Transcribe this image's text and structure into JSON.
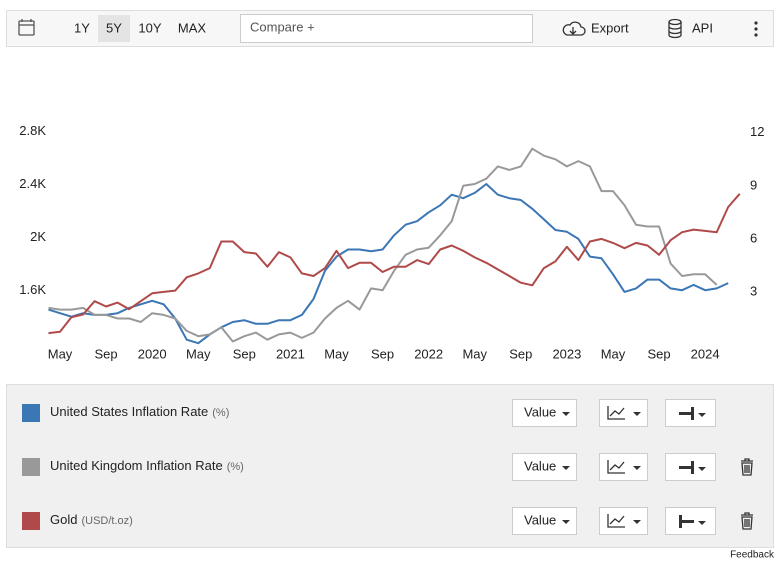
{
  "toolbar": {
    "ranges": [
      "1Y",
      "5Y",
      "10Y",
      "MAX"
    ],
    "compare": "Compare +",
    "export": "Export",
    "api": "API"
  },
  "chart_data": {
    "type": "line",
    "categories": [
      null,
      "May",
      null,
      null,
      null,
      "Sep",
      null,
      null,
      null,
      "2020",
      null,
      null,
      null,
      "May",
      null,
      null,
      null,
      "Sep",
      null,
      null,
      null,
      "2021",
      null,
      null,
      null,
      "May",
      null,
      null,
      null,
      "Sep",
      null,
      null,
      null,
      "2022",
      null,
      null,
      null,
      "May",
      null,
      null,
      null,
      "Sep",
      null,
      null,
      null,
      "2023",
      null,
      null,
      null,
      "May",
      null,
      null,
      null,
      "Sep",
      null,
      null,
      null,
      "2024",
      null,
      null,
      null
    ],
    "ylim": [
      1190,
      3150
    ],
    "yticks": [
      {
        "value": 1600,
        "label": "1.6K"
      },
      {
        "value": 2000,
        "label": "2K"
      },
      {
        "value": 2400,
        "label": "2.4K"
      },
      {
        "value": 2800,
        "label": "2.8K"
      }
    ],
    "y2lim": [
      0,
      14.7
    ],
    "y2ticks": [
      3,
      6,
      9,
      12
    ],
    "grid": false,
    "series": [
      {
        "name": "United States Inflation Rate",
        "unit": "(%)",
        "color": "#3b76b5",
        "axis": "y2",
        "values": [
          2.0,
          1.8,
          1.6,
          1.8,
          1.7,
          1.7,
          1.8,
          2.1,
          2.3,
          2.5,
          2.3,
          1.5,
          0.3,
          0.1,
          0.6,
          1.0,
          1.3,
          1.4,
          1.2,
          1.2,
          1.4,
          1.4,
          1.7,
          2.6,
          4.2,
          5.0,
          5.4,
          5.4,
          5.3,
          5.4,
          6.2,
          6.8,
          7.0,
          7.5,
          7.9,
          8.5,
          8.3,
          8.6,
          9.1,
          8.5,
          8.3,
          8.2,
          7.7,
          7.1,
          6.5,
          6.4,
          6.0,
          5.0,
          4.9,
          4.0,
          3.0,
          3.2,
          3.7,
          3.7,
          3.2,
          3.1,
          3.4,
          3.1,
          3.2,
          3.5,
          null
        ]
      },
      {
        "name": "United Kingdom Inflation Rate",
        "unit": "(%)",
        "color": "#999999",
        "axis": "y2",
        "values": [
          2.1,
          2.0,
          2.0,
          2.1,
          1.7,
          1.7,
          1.5,
          1.5,
          1.3,
          1.8,
          1.7,
          1.5,
          0.8,
          0.5,
          0.6,
          1.0,
          0.2,
          0.5,
          0.7,
          0.3,
          0.6,
          0.7,
          0.4,
          0.7,
          1.5,
          2.1,
          2.5,
          2.0,
          3.2,
          3.1,
          4.2,
          5.1,
          5.4,
          5.5,
          6.2,
          7.0,
          9.0,
          9.1,
          9.4,
          10.1,
          9.9,
          10.1,
          11.1,
          10.7,
          10.5,
          10.1,
          10.4,
          10.1,
          8.7,
          8.7,
          7.9,
          6.8,
          6.7,
          6.7,
          4.6,
          3.9,
          4.0,
          4.0,
          3.4,
          null,
          null
        ]
      },
      {
        "name": "Gold",
        "unit": "(USD/t.oz)",
        "color": "#b04a4a",
        "axis": "y",
        "values": [
          1280,
          1290,
          1400,
          1420,
          1520,
          1480,
          1510,
          1460,
          1520,
          1580,
          1590,
          1600,
          1700,
          1730,
          1770,
          1970,
          1970,
          1890,
          1880,
          1780,
          1890,
          1850,
          1730,
          1710,
          1770,
          1900,
          1770,
          1810,
          1810,
          1740,
          1780,
          1780,
          1830,
          1800,
          1910,
          1940,
          1900,
          1850,
          1810,
          1760,
          1710,
          1660,
          1640,
          1770,
          1820,
          1930,
          1830,
          1970,
          1990,
          1960,
          1920,
          1960,
          1940,
          1870,
          1980,
          2040,
          2060,
          2050,
          2040,
          2230,
          2330
        ]
      }
    ]
  },
  "controls": {
    "value_button": "Value"
  },
  "footer": {
    "feedback": "Feedback"
  }
}
